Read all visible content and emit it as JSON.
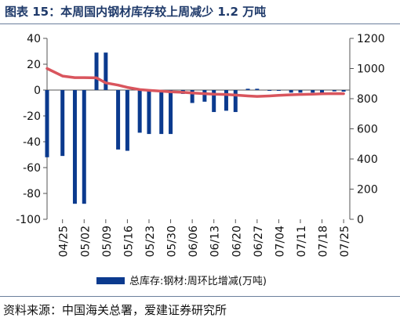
{
  "header": {
    "title": "图表 15：本周国内钢材库存较上周减少 1.2 万吨"
  },
  "footer": {
    "source": "资料来源：中国海关总署，爱建证券研究所"
  },
  "chart_data": {
    "type": "bar",
    "categories": [
      "04/25",
      "05/02",
      "05/09",
      "05/16",
      "05/23",
      "05/30",
      "06/06",
      "06/13",
      "06/20",
      "06/27",
      "07/04",
      "07/11",
      "07/18",
      "07/25"
    ],
    "series": [
      {
        "name": "总库存:钢材:周环比增减(万吨)",
        "type": "bar",
        "axis": "left",
        "color": "#0b3a8e",
        "x": [
          "2025-04-20",
          "2025-04-25",
          "2025-04-29",
          "2025-05-02",
          "2025-05-06",
          "2025-05-09",
          "2025-05-13",
          "2025-05-16",
          "2025-05-20",
          "2025-05-23",
          "2025-05-27",
          "2025-05-30",
          "2025-06-03",
          "2025-06-06",
          "2025-06-10",
          "2025-06-13",
          "2025-06-17",
          "2025-06-20",
          "2025-06-24",
          "2025-06-27",
          "2025-07-01",
          "2025-07-04",
          "2025-07-08",
          "2025-07-11",
          "2025-07-15",
          "2025-07-18",
          "2025-07-22",
          "2025-07-25"
        ],
        "values": [
          -52,
          -51,
          -88,
          -88,
          29,
          29,
          -46,
          -47,
          -33,
          -34,
          -34,
          -34,
          -3,
          -10,
          -9,
          -17,
          -16,
          -17,
          1,
          1,
          0,
          0,
          -2,
          -2,
          -2,
          -3,
          -1,
          -1.2
        ]
      },
      {
        "name": "",
        "type": "line",
        "axis": "right",
        "color": "#d9555d",
        "x": [
          "2025-04-20",
          "2025-04-25",
          "2025-04-29",
          "2025-05-02",
          "2025-05-06",
          "2025-05-09",
          "2025-05-13",
          "2025-05-16",
          "2025-05-20",
          "2025-05-23",
          "2025-05-27",
          "2025-05-30",
          "2025-06-03",
          "2025-06-06",
          "2025-06-10",
          "2025-06-13",
          "2025-06-17",
          "2025-06-20",
          "2025-06-24",
          "2025-06-27",
          "2025-07-01",
          "2025-07-04",
          "2025-07-08",
          "2025-07-11",
          "2025-07-15",
          "2025-07-18",
          "2025-07-22",
          "2025-07-25"
        ],
        "values": [
          1000,
          950,
          940,
          940,
          938,
          905,
          890,
          875,
          860,
          855,
          850,
          845,
          842,
          838,
          833,
          830,
          828,
          824,
          818,
          815,
          818,
          822,
          826,
          828,
          830,
          832,
          834,
          833
        ]
      }
    ],
    "ylim_left": [
      -100,
      40
    ],
    "yticks_left": [
      -100,
      -80,
      -60,
      -40,
      -20,
      0,
      20,
      40
    ],
    "ylim_right": [
      0,
      1200
    ],
    "yticks_right": [
      0,
      200,
      400,
      600,
      800,
      1000,
      1200
    ],
    "x_range": [
      "2025-04-20",
      "2025-07-27"
    ],
    "xticks": [
      "2025-04-25",
      "2025-05-02",
      "2025-05-09",
      "2025-05-16",
      "2025-05-23",
      "2025-05-30",
      "2025-06-06",
      "2025-06-13",
      "2025-06-20",
      "2025-06-27",
      "2025-07-04",
      "2025-07-11",
      "2025-07-18",
      "2025-07-25"
    ],
    "grid": false,
    "legend": "bottom"
  }
}
